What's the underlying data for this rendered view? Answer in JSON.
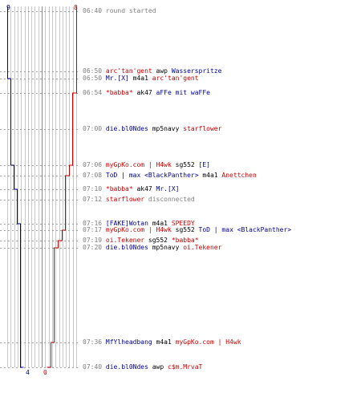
{
  "chart_data": {
    "type": "line",
    "axis_top": {
      "left": "9",
      "right": "8"
    },
    "axis_bottom": {
      "left": "4",
      "right": "0"
    },
    "steps_total": 20,
    "series": [
      {
        "color": "#000099",
        "start": 9,
        "end": 4,
        "points": [
          [
            "06:40",
            9
          ],
          [
            "06:50",
            8
          ],
          [
            "06:54",
            8
          ],
          [
            "07:00",
            8
          ],
          [
            "07:06",
            7
          ],
          [
            "07:08",
            7
          ],
          [
            "07:10",
            6
          ],
          [
            "07:12",
            6
          ],
          [
            "07:16",
            5
          ],
          [
            "07:17",
            5
          ],
          [
            "07:19",
            5
          ],
          [
            "07:20",
            5
          ],
          [
            "07:36",
            5
          ],
          [
            "07:40",
            4
          ]
        ]
      },
      {
        "color": "#cc0000",
        "start": 8,
        "end": 0,
        "points": [
          [
            "06:40",
            8
          ],
          [
            "06:50",
            8
          ],
          [
            "06:54",
            7
          ],
          [
            "07:00",
            7
          ],
          [
            "07:06",
            6
          ],
          [
            "07:08",
            5
          ],
          [
            "07:10",
            5
          ],
          [
            "07:12",
            5
          ],
          [
            "07:16",
            5
          ],
          [
            "07:17",
            4
          ],
          [
            "07:19",
            3
          ],
          [
            "07:20",
            2
          ],
          [
            "07:36",
            1
          ],
          [
            "07:40",
            0
          ]
        ]
      }
    ]
  },
  "events": [
    {
      "time": "06:40",
      "row": 14,
      "parts": [
        {
          "t": "round started",
          "c": "sys"
        }
      ]
    },
    {
      "time": "06:50",
      "row": 89,
      "parts": [
        {
          "t": "arc'tan'gent",
          "c": "red"
        },
        {
          "t": " awp ",
          "c": "plain"
        },
        {
          "t": "Wasserspritze",
          "c": "blue"
        }
      ]
    },
    {
      "time": "06:50",
      "row": 98,
      "parts": [
        {
          "t": "Mr.[X]",
          "c": "blue"
        },
        {
          "t": " m4a1 ",
          "c": "plain"
        },
        {
          "t": "arc'tan'gent",
          "c": "red"
        }
      ]
    },
    {
      "time": "06:54",
      "row": 116,
      "parts": [
        {
          "t": "*babba*",
          "c": "red"
        },
        {
          "t": " ak47 ",
          "c": "plain"
        },
        {
          "t": "aFFe mit waFFe",
          "c": "blue"
        }
      ]
    },
    {
      "time": "07:00",
      "row": 161,
      "parts": [
        {
          "t": "die.bl0Ndes",
          "c": "blue"
        },
        {
          "t": " mp5navy ",
          "c": "plain"
        },
        {
          "t": "starflower",
          "c": "red"
        }
      ]
    },
    {
      "time": "07:06",
      "row": 206,
      "parts": [
        {
          "t": "myGpKo.com | H4wk",
          "c": "red"
        },
        {
          "t": " sg552 ",
          "c": "plain"
        },
        {
          "t": "[E]",
          "c": "blue"
        }
      ]
    },
    {
      "time": "07:08",
      "row": 219,
      "parts": [
        {
          "t": "ToD | max <BlackPanther>",
          "c": "blue"
        },
        {
          "t": " m4a1 ",
          "c": "plain"
        },
        {
          "t": "Anettchen",
          "c": "red"
        }
      ]
    },
    {
      "time": "07:10",
      "row": 236,
      "parts": [
        {
          "t": "*babba*",
          "c": "red"
        },
        {
          "t": " ak47 ",
          "c": "plain"
        },
        {
          "t": "Mr.[X]",
          "c": "blue"
        }
      ]
    },
    {
      "time": "07:12",
      "row": 249,
      "parts": [
        {
          "t": "starflower",
          "c": "red"
        },
        {
          "t": " disconnected",
          "c": "sys"
        }
      ]
    },
    {
      "time": "07:16",
      "row": 279,
      "parts": [
        {
          "t": "[FAKE]Wotan",
          "c": "blue"
        },
        {
          "t": " m4a1 ",
          "c": "plain"
        },
        {
          "t": "SPEEDY",
          "c": "red"
        }
      ]
    },
    {
      "time": "07:17",
      "row": 287,
      "parts": [
        {
          "t": "myGpKo.com | H4wk",
          "c": "red"
        },
        {
          "t": " sg552 ",
          "c": "plain"
        },
        {
          "t": "ToD | max <BlackPanther>",
          "c": "blue"
        }
      ]
    },
    {
      "time": "07:19",
      "row": 300,
      "parts": [
        {
          "t": "oi.Tekener",
          "c": "red"
        },
        {
          "t": " sg552 ",
          "c": "plain"
        },
        {
          "t": "*babba*",
          "c": "red"
        }
      ]
    },
    {
      "time": "07:20",
      "row": 309,
      "parts": [
        {
          "t": "die.bl0Ndes",
          "c": "blue"
        },
        {
          "t": " mp5navy ",
          "c": "plain"
        },
        {
          "t": "oi.Tekener",
          "c": "red"
        }
      ]
    },
    {
      "time": "07:36",
      "row": 427,
      "parts": [
        {
          "t": "MfYlheadbang",
          "c": "blue"
        },
        {
          "t": " m4a1 ",
          "c": "plain"
        },
        {
          "t": "myGpKo.com | H4wk",
          "c": "red"
        }
      ]
    },
    {
      "time": "07:40",
      "row": 458,
      "parts": [
        {
          "t": "die.bl0Ndes",
          "c": "blue"
        },
        {
          "t": " awp ",
          "c": "plain"
        },
        {
          "t": "c$m.MrvaT",
          "c": "red"
        }
      ]
    }
  ]
}
